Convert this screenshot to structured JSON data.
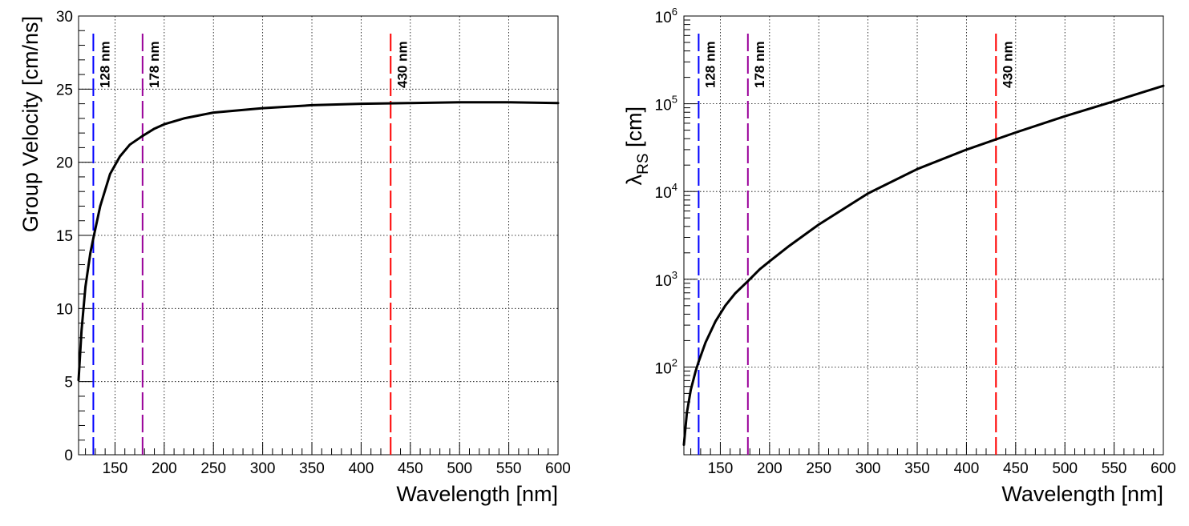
{
  "chart_data": [
    {
      "id": "left",
      "type": "line",
      "xlabel": "Wavelength [nm]",
      "ylabel": "Group Velocity [cm/ns]",
      "xlim": [
        113,
        600
      ],
      "ylim": [
        0,
        30
      ],
      "yscale": "linear",
      "grid": true,
      "x_ticks": [
        150,
        200,
        250,
        300,
        350,
        400,
        450,
        500,
        550,
        600
      ],
      "x_tick_labels": [
        "150",
        "200",
        "250",
        "300",
        "350",
        "400",
        "450",
        "500",
        "550",
        "600"
      ],
      "y_ticks": [
        0,
        5,
        10,
        15,
        20,
        25,
        30
      ],
      "y_tick_labels": [
        "0",
        "5",
        "10",
        "15",
        "20",
        "25",
        "30"
      ],
      "series": [
        {
          "color": "#000000",
          "x": [
            113,
            116,
            120,
            125,
            128,
            135,
            145,
            155,
            165,
            178,
            190,
            200,
            220,
            250,
            300,
            350,
            400,
            450,
            500,
            550,
            600
          ],
          "y": [
            5.1,
            8.5,
            11.5,
            13.8,
            14.8,
            17.0,
            19.2,
            20.4,
            21.2,
            21.8,
            22.3,
            22.6,
            23.0,
            23.4,
            23.7,
            23.9,
            24.0,
            24.05,
            24.1,
            24.1,
            24.05
          ]
        }
      ],
      "markers": [
        {
          "x": 128,
          "label": "128 nm",
          "color": "#0000ff",
          "ymax": 29
        },
        {
          "x": 178,
          "label": "178 nm",
          "color": "#990099",
          "ymax": 29
        },
        {
          "x": 430,
          "label": "430 nm",
          "color": "#ff0000",
          "ymax": 29
        }
      ]
    },
    {
      "id": "right",
      "type": "line",
      "xlabel": "Wavelength [nm]",
      "ylabel_main": "λ",
      "ylabel_sub": "RS",
      "ylabel_rest": " [cm]",
      "xlim": [
        113,
        600
      ],
      "ylim": [
        10,
        1000000
      ],
      "yscale": "log",
      "grid": true,
      "x_ticks": [
        150,
        200,
        250,
        300,
        350,
        400,
        450,
        500,
        550,
        600
      ],
      "x_tick_labels": [
        "150",
        "200",
        "250",
        "300",
        "350",
        "400",
        "450",
        "500",
        "550",
        "600"
      ],
      "y_ticks": [
        100,
        1000,
        10000,
        100000,
        1000000
      ],
      "y_tick_labels": [
        {
          "base": "10",
          "exp": "2"
        },
        {
          "base": "10",
          "exp": "3"
        },
        {
          "base": "10",
          "exp": "4"
        },
        {
          "base": "10",
          "exp": "5"
        },
        {
          "base": "10",
          "exp": "6"
        }
      ],
      "series": [
        {
          "color": "#000000",
          "x": [
            113,
            116,
            120,
            125,
            128,
            135,
            145,
            155,
            165,
            178,
            190,
            200,
            220,
            250,
            300,
            350,
            400,
            450,
            500,
            550,
            600
          ],
          "y": [
            13,
            30,
            55,
            90,
            115,
            190,
            330,
            500,
            690,
            950,
            1300,
            1600,
            2400,
            4200,
            9500,
            18000,
            30000,
            47000,
            72000,
            107000,
            160000
          ]
        }
      ],
      "markers": [
        {
          "x": 128,
          "label": "128 nm",
          "color": "#0000ff",
          "ymax": 700000
        },
        {
          "x": 178,
          "label": "178 nm",
          "color": "#990099",
          "ymax": 700000
        },
        {
          "x": 430,
          "label": "430 nm",
          "color": "#ff0000",
          "ymax": 700000
        }
      ]
    }
  ]
}
